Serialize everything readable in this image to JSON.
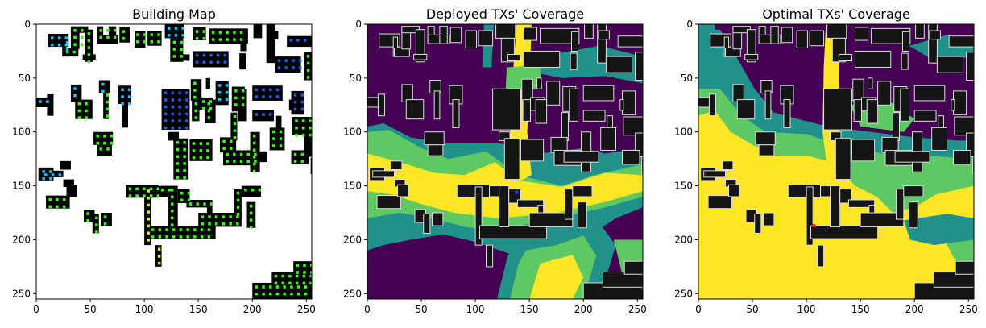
{
  "chart_data": [
    {
      "type": "heatmap",
      "title": "Building Map",
      "xlim": [
        0,
        255
      ],
      "ylim": [
        255,
        0
      ],
      "xticks": [
        0,
        50,
        100,
        150,
        200,
        250
      ],
      "yticks": [
        0,
        50,
        100,
        150,
        200,
        250
      ],
      "background": "#ffffff",
      "tx_marker": null
    },
    {
      "type": "heatmap",
      "title": "Deployed TXs' Coverage",
      "xlim": [
        0,
        255
      ],
      "ylim": [
        255,
        0
      ],
      "xticks": [
        0,
        50,
        100,
        150,
        200,
        250
      ],
      "yticks": [
        0,
        50,
        100,
        150,
        200,
        250
      ],
      "background": "#440154",
      "tx_marker": {
        "x": 138,
        "y": 156,
        "color": "#1f3fff"
      }
    },
    {
      "type": "heatmap",
      "title": "Optimal TXs' Coverage",
      "xlim": [
        0,
        255
      ],
      "ylim": [
        255,
        0
      ],
      "xticks": [
        0,
        50,
        100,
        150,
        200,
        250
      ],
      "yticks": [
        0,
        50,
        100,
        150,
        200,
        250
      ],
      "background": "#440154",
      "tx_marker": {
        "x": 107,
        "y": 187,
        "color": "#ff2020"
      }
    }
  ],
  "colors": {
    "building": "#151515",
    "building_outline": "#dddddd",
    "cov_low": "#440154",
    "cov_mid": "#21918c",
    "cov_high": "#5ec962",
    "cov_max": "#fde725",
    "win_green": "#3bff0f",
    "win_cyan": "#16c2ff",
    "win_blue": "#1b5cff",
    "win_yellow": "#c8ff10"
  }
}
